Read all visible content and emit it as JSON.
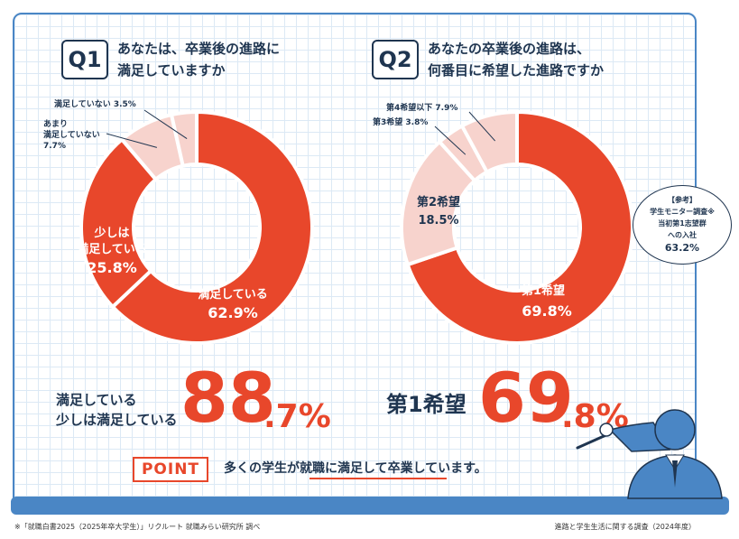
{
  "q1": {
    "badge": "Q1",
    "question_line1": "あなたは、卒業後の進路に",
    "question_line2": "満足していますか",
    "summary_line1": "満足している",
    "summary_line2": "少しは満足している",
    "summary_big": "88",
    "summary_small": ".7%"
  },
  "q2": {
    "badge": "Q2",
    "question_line1": "あなたの卒業後の進路は、",
    "question_line2": "何番目に希望した進路ですか",
    "summary_label": "第1希望",
    "summary_big": "69",
    "summary_small": ".8%"
  },
  "reference": {
    "line1": "【参考】",
    "line2": "学生モニター調査※",
    "line3": "当初第1志望群",
    "line4": "への入社",
    "value": "63.2%"
  },
  "point": {
    "badge": "POINT",
    "text": "多くの学生が就職に満足して卒業しています。"
  },
  "footer": {
    "left": "※「就職白書2025（2025年卒大学生）」リクルート 就職みらい研究所 調べ",
    "right": "進路と学生生活に関する調査（2024年度）"
  },
  "colors": {
    "dark": "#e8472b",
    "mid": "#f2bdb4",
    "light": "#f7d3cd",
    "navy": "#1f3550",
    "blue": "#4a86c5"
  },
  "chart_data": [
    {
      "type": "pie",
      "categories": [
        "満足している",
        "少しは満足している",
        "あまり満足していない",
        "満足していない"
      ],
      "values": [
        62.9,
        25.8,
        7.7,
        3.5
      ],
      "labels": [
        "満足している",
        "少しは\n満足している",
        "あまり\n満足していない",
        "満足していない"
      ],
      "value_labels": [
        "62.9%",
        "25.8%",
        "7.7%",
        "3.5%"
      ],
      "colors": [
        "#e8472b",
        "#e8472b",
        "#f7d3cd",
        "#f7d3cd"
      ]
    },
    {
      "type": "pie",
      "categories": [
        "第1希望",
        "第2希望",
        "第3希望",
        "第4希望以下"
      ],
      "values": [
        69.8,
        18.5,
        3.8,
        7.9
      ],
      "value_labels": [
        "69.8%",
        "18.5%",
        "3.8%",
        "7.9%"
      ],
      "colors": [
        "#e8472b",
        "#f7d3cd",
        "#f7d3cd",
        "#f7d3cd"
      ]
    }
  ]
}
